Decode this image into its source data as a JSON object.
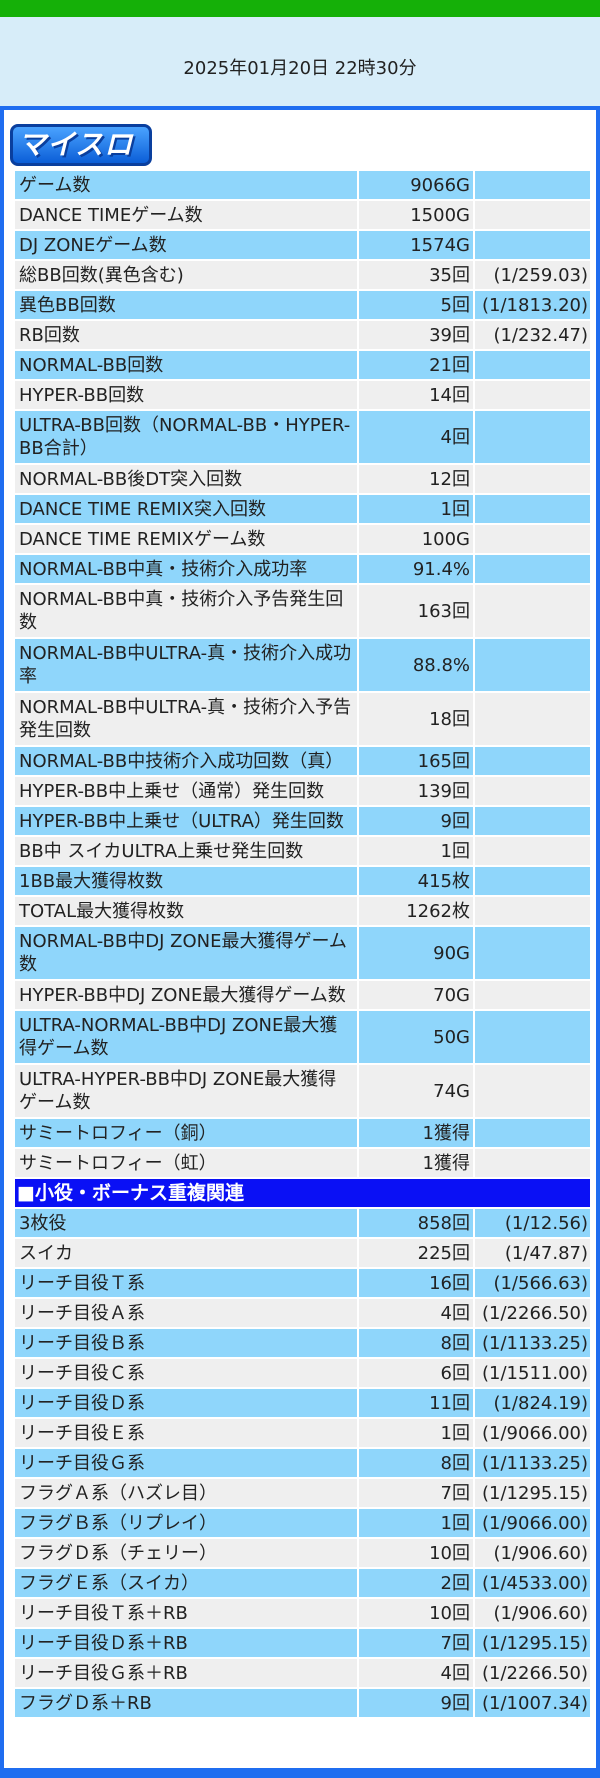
{
  "header": {
    "datetime": "2025年01月20日 22時30分"
  },
  "logo": {
    "text": "マイスロ"
  },
  "rows1": [
    {
      "label": "ゲーム数",
      "value": "9066G",
      "ratio": ""
    },
    {
      "label": "DANCE TIMEゲーム数",
      "value": "1500G",
      "ratio": ""
    },
    {
      "label": "DJ ZONEゲーム数",
      "value": "1574G",
      "ratio": ""
    },
    {
      "label": "総BB回数(異色含む)",
      "value": "35回",
      "ratio": "(1/259.03)"
    },
    {
      "label": "異色BB回数",
      "value": "5回",
      "ratio": "(1/1813.20)"
    },
    {
      "label": "RB回数",
      "value": "39回",
      "ratio": "(1/232.47)"
    },
    {
      "label": "NORMAL-BB回数",
      "value": "21回",
      "ratio": ""
    },
    {
      "label": "HYPER-BB回数",
      "value": "14回",
      "ratio": ""
    },
    {
      "label": "ULTRA-BB回数（NORMAL-BB・HYPER-BB合計）",
      "value": "4回",
      "ratio": ""
    },
    {
      "label": "NORMAL-BB後DT突入回数",
      "value": "12回",
      "ratio": ""
    },
    {
      "label": "DANCE TIME REMIX突入回数",
      "value": "1回",
      "ratio": ""
    },
    {
      "label": "DANCE TIME REMIXゲーム数",
      "value": "100G",
      "ratio": ""
    },
    {
      "label": "NORMAL-BB中真・技術介入成功率",
      "value": "91.4%",
      "ratio": ""
    },
    {
      "label": "NORMAL-BB中真・技術介入予告発生回数",
      "value": "163回",
      "ratio": ""
    },
    {
      "label": "NORMAL-BB中ULTRA-真・技術介入成功率",
      "value": "88.8%",
      "ratio": ""
    },
    {
      "label": "NORMAL-BB中ULTRA-真・技術介入予告発生回数",
      "value": "18回",
      "ratio": ""
    },
    {
      "label": "NORMAL-BB中技術介入成功回数（真）",
      "value": "165回",
      "ratio": ""
    },
    {
      "label": "HYPER-BB中上乗せ（通常）発生回数",
      "value": "139回",
      "ratio": ""
    },
    {
      "label": "HYPER-BB中上乗せ（ULTRA）発生回数",
      "value": "9回",
      "ratio": ""
    },
    {
      "label": "BB中 スイカULTRA上乗せ発生回数",
      "value": "1回",
      "ratio": ""
    },
    {
      "label": "1BB最大獲得枚数",
      "value": "415枚",
      "ratio": ""
    },
    {
      "label": "TOTAL最大獲得枚数",
      "value": "1262枚",
      "ratio": ""
    },
    {
      "label": "NORMAL-BB中DJ ZONE最大獲得ゲーム数",
      "value": "90G",
      "ratio": ""
    },
    {
      "label": "HYPER-BB中DJ ZONE最大獲得ゲーム数",
      "value": "70G",
      "ratio": ""
    },
    {
      "label": "ULTRA-NORMAL-BB中DJ ZONE最大獲得ゲーム数",
      "value": "50G",
      "ratio": ""
    },
    {
      "label": "ULTRA-HYPER-BB中DJ ZONE最大獲得ゲーム数",
      "value": "74G",
      "ratio": ""
    },
    {
      "label": "サミートロフィー（銅）",
      "value": "1獲得",
      "ratio": ""
    },
    {
      "label": "サミートロフィー（虹）",
      "value": "1獲得",
      "ratio": ""
    }
  ],
  "section2": {
    "title": "■小役・ボーナス重複関連"
  },
  "rows2": [
    {
      "label": "3枚役",
      "value": "858回",
      "ratio": "(1/12.56)"
    },
    {
      "label": "スイカ",
      "value": "225回",
      "ratio": "(1/47.87)"
    },
    {
      "label": "リーチ目役Ｔ系",
      "value": "16回",
      "ratio": "(1/566.63)"
    },
    {
      "label": "リーチ目役Ａ系",
      "value": "4回",
      "ratio": "(1/2266.50)"
    },
    {
      "label": "リーチ目役Ｂ系",
      "value": "8回",
      "ratio": "(1/1133.25)"
    },
    {
      "label": "リーチ目役Ｃ系",
      "value": "6回",
      "ratio": "(1/1511.00)"
    },
    {
      "label": "リーチ目役Ｄ系",
      "value": "11回",
      "ratio": "(1/824.19)"
    },
    {
      "label": "リーチ目役Ｅ系",
      "value": "1回",
      "ratio": "(1/9066.00)"
    },
    {
      "label": "リーチ目役Ｇ系",
      "value": "8回",
      "ratio": "(1/1133.25)"
    },
    {
      "label": "フラグＡ系（ハズレ目）",
      "value": "7回",
      "ratio": "(1/1295.15)"
    },
    {
      "label": "フラグＢ系（リプレイ）",
      "value": "1回",
      "ratio": "(1/9066.00)"
    },
    {
      "label": "フラグＤ系（チェリー）",
      "value": "10回",
      "ratio": "(1/906.60)"
    },
    {
      "label": "フラグＥ系（スイカ）",
      "value": "2回",
      "ratio": "(1/4533.00)"
    },
    {
      "label": "リーチ目役Ｔ系＋RB",
      "value": "10回",
      "ratio": "(1/906.60)"
    },
    {
      "label": "リーチ目役Ｄ系＋RB",
      "value": "7回",
      "ratio": "(1/1295.15)"
    },
    {
      "label": "リーチ目役Ｇ系＋RB",
      "value": "4回",
      "ratio": "(1/2266.50)"
    },
    {
      "label": "フラグＤ系＋RB",
      "value": "9回",
      "ratio": "(1/1007.34)"
    }
  ]
}
